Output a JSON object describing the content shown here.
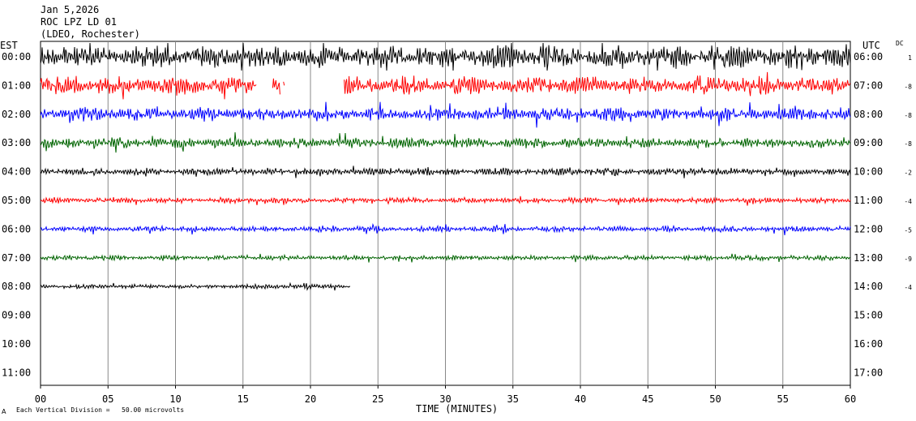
{
  "header": {
    "date": "Jan 5,2026",
    "station": "ROC LPZ LD 01",
    "network": "(LDEO, Rochester)"
  },
  "chart_data": {
    "type": "line",
    "title": "Jan 5,2026",
    "left_axis_label": "EST",
    "right_axis_label": "UTC",
    "dc_label": "DC",
    "xlabel": "TIME (MINUTES)",
    "xlim": [
      0,
      60
    ],
    "x_ticks": [
      "00",
      "05",
      "10",
      "15",
      "20",
      "25",
      "30",
      "35",
      "40",
      "45",
      "50",
      "55",
      "60"
    ],
    "scale_note": "Each Vertical Division =   50.00 microvolts",
    "grid": true,
    "line_colors": [
      "#000000",
      "#ff0000",
      "#0000ff",
      "#006400"
    ],
    "rows": [
      {
        "est": "00:00",
        "utc": "06:00",
        "dc": "1",
        "amplitude": 1.0,
        "color": "#000000",
        "segments": [
          [
            0,
            60
          ]
        ]
      },
      {
        "est": "01:00",
        "utc": "07:00",
        "dc": "-8",
        "amplitude": 0.8,
        "color": "#ff0000",
        "segments": [
          [
            0,
            16
          ],
          [
            17.2,
            17.8
          ],
          [
            18,
            18.1
          ],
          [
            22.5,
            60
          ]
        ]
      },
      {
        "est": "02:00",
        "utc": "08:00",
        "dc": "-8",
        "amplitude": 0.6,
        "color": "#0000ff",
        "segments": [
          [
            0,
            60
          ]
        ]
      },
      {
        "est": "03:00",
        "utc": "09:00",
        "dc": "-8",
        "amplitude": 0.45,
        "color": "#006400",
        "segments": [
          [
            0,
            60
          ]
        ]
      },
      {
        "est": "04:00",
        "utc": "10:00",
        "dc": "-2",
        "amplitude": 0.32,
        "color": "#000000",
        "segments": [
          [
            0,
            60
          ]
        ]
      },
      {
        "est": "05:00",
        "utc": "11:00",
        "dc": "-4",
        "amplitude": 0.25,
        "color": "#ff0000",
        "segments": [
          [
            0,
            60
          ]
        ]
      },
      {
        "est": "06:00",
        "utc": "12:00",
        "dc": "-5",
        "amplitude": 0.25,
        "color": "#0000ff",
        "segments": [
          [
            0,
            60
          ]
        ]
      },
      {
        "est": "07:00",
        "utc": "13:00",
        "dc": "-9",
        "amplitude": 0.22,
        "color": "#006400",
        "segments": [
          [
            0,
            60
          ]
        ]
      },
      {
        "est": "08:00",
        "utc": "14:00",
        "dc": "-4",
        "amplitude": 0.2,
        "color": "#000000",
        "segments": [
          [
            0,
            23
          ]
        ]
      },
      {
        "est": "09:00",
        "utc": "15:00",
        "dc": "",
        "amplitude": 0,
        "color": "#000000",
        "segments": []
      },
      {
        "est": "10:00",
        "utc": "16:00",
        "dc": "",
        "amplitude": 0,
        "color": "#000000",
        "segments": []
      },
      {
        "est": "11:00",
        "utc": "17:00",
        "dc": "",
        "amplitude": 0,
        "color": "#000000",
        "segments": []
      }
    ]
  }
}
